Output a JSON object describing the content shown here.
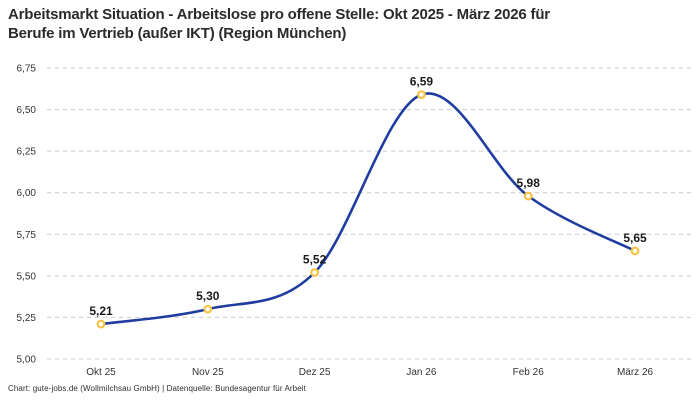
{
  "header": {
    "title_lines": [
      "Arbeitsmarkt Situation - Arbeitslose pro offene Stelle: Okt 2025 - März 2026 für",
      "Berufe im Vertrieb (außer IKT) (Region München)"
    ]
  },
  "footer": {
    "attribution": "Chart: gute-jobs.de (Wollmilchsau GmbH) | Datenquelle: Bundesagentur für Arbeit"
  },
  "chart_data": {
    "type": "line",
    "title": "Arbeitsmarkt Situation - Arbeitslose pro offene Stelle: Okt 2025 - März 2026 für Berufe im Vertrieb (außer IKT) (Region München)",
    "categories": [
      "Okt 25",
      "Nov 25",
      "Dez 25",
      "Jan 26",
      "Feb 26",
      "März 26"
    ],
    "values": [
      5.21,
      5.3,
      5.52,
      6.59,
      5.98,
      5.65
    ],
    "value_labels": [
      "5,21",
      "5,30",
      "5,52",
      "6,59",
      "5,98",
      "5,65"
    ],
    "ylim": [
      5.0,
      6.75
    ],
    "ytick_step": 0.25,
    "ytick_labels": [
      "5,00",
      "5,25",
      "5,50",
      "5,75",
      "6,00",
      "6,25",
      "6,50",
      "6,75"
    ],
    "xlabel": "",
    "ylabel": "",
    "grid": "horizontal-dashed",
    "legend_position": "none",
    "colors": {
      "line": "#1f3da0",
      "marker_fill": "#ffffff",
      "marker_stroke": "#f6c344",
      "gridline": "#c9c9c9",
      "tick_text": "#333333",
      "label_text": "#1a1a1a"
    }
  }
}
